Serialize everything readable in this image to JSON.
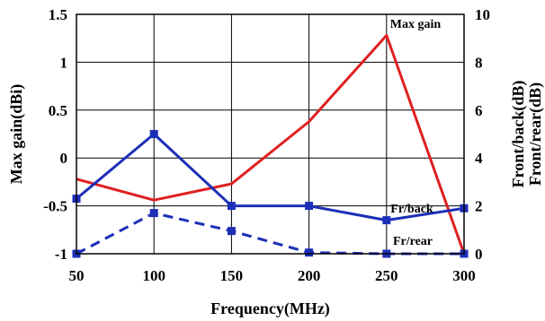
{
  "chart_data": {
    "type": "line",
    "xlabel": "Frequency(MHz)",
    "ylabel_left": "Max gain(dBi)",
    "ylabel_right": [
      "Front/back(dB)",
      "Front/rear(dB)"
    ],
    "x": [
      50,
      100,
      150,
      200,
      250,
      300
    ],
    "xlim": [
      50,
      300
    ],
    "x_ticks": [
      "50",
      "100",
      "150",
      "200",
      "250",
      "300"
    ],
    "ylim_left": [
      -1,
      1.5
    ],
    "y_ticks_left": [
      "-1",
      "-0.5",
      "0",
      "0.5",
      "1",
      "1.5"
    ],
    "ylim_right": [
      0,
      10
    ],
    "y_ticks_right": [
      "0",
      "2",
      "4",
      "6",
      "8",
      "10"
    ],
    "grid": true,
    "series": [
      {
        "name": "Max gain",
        "axis": "left",
        "color": "#e02020",
        "style": "solid",
        "marker": "none",
        "values": [
          -0.22,
          -0.44,
          -0.27,
          0.38,
          1.28,
          -1.0
        ]
      },
      {
        "name": "Fr/back",
        "axis": "right",
        "color": "#1c2fb8",
        "style": "solid",
        "marker": "square",
        "values": [
          2.3,
          5.0,
          2.0,
          2.0,
          1.4,
          1.9
        ]
      },
      {
        "name": "Fr/rear",
        "axis": "right",
        "color": "#1c2fb8",
        "style": "dashed",
        "marker": "square",
        "values": [
          0.0,
          1.7,
          0.95,
          0.05,
          0.0,
          0.0
        ]
      }
    ]
  }
}
